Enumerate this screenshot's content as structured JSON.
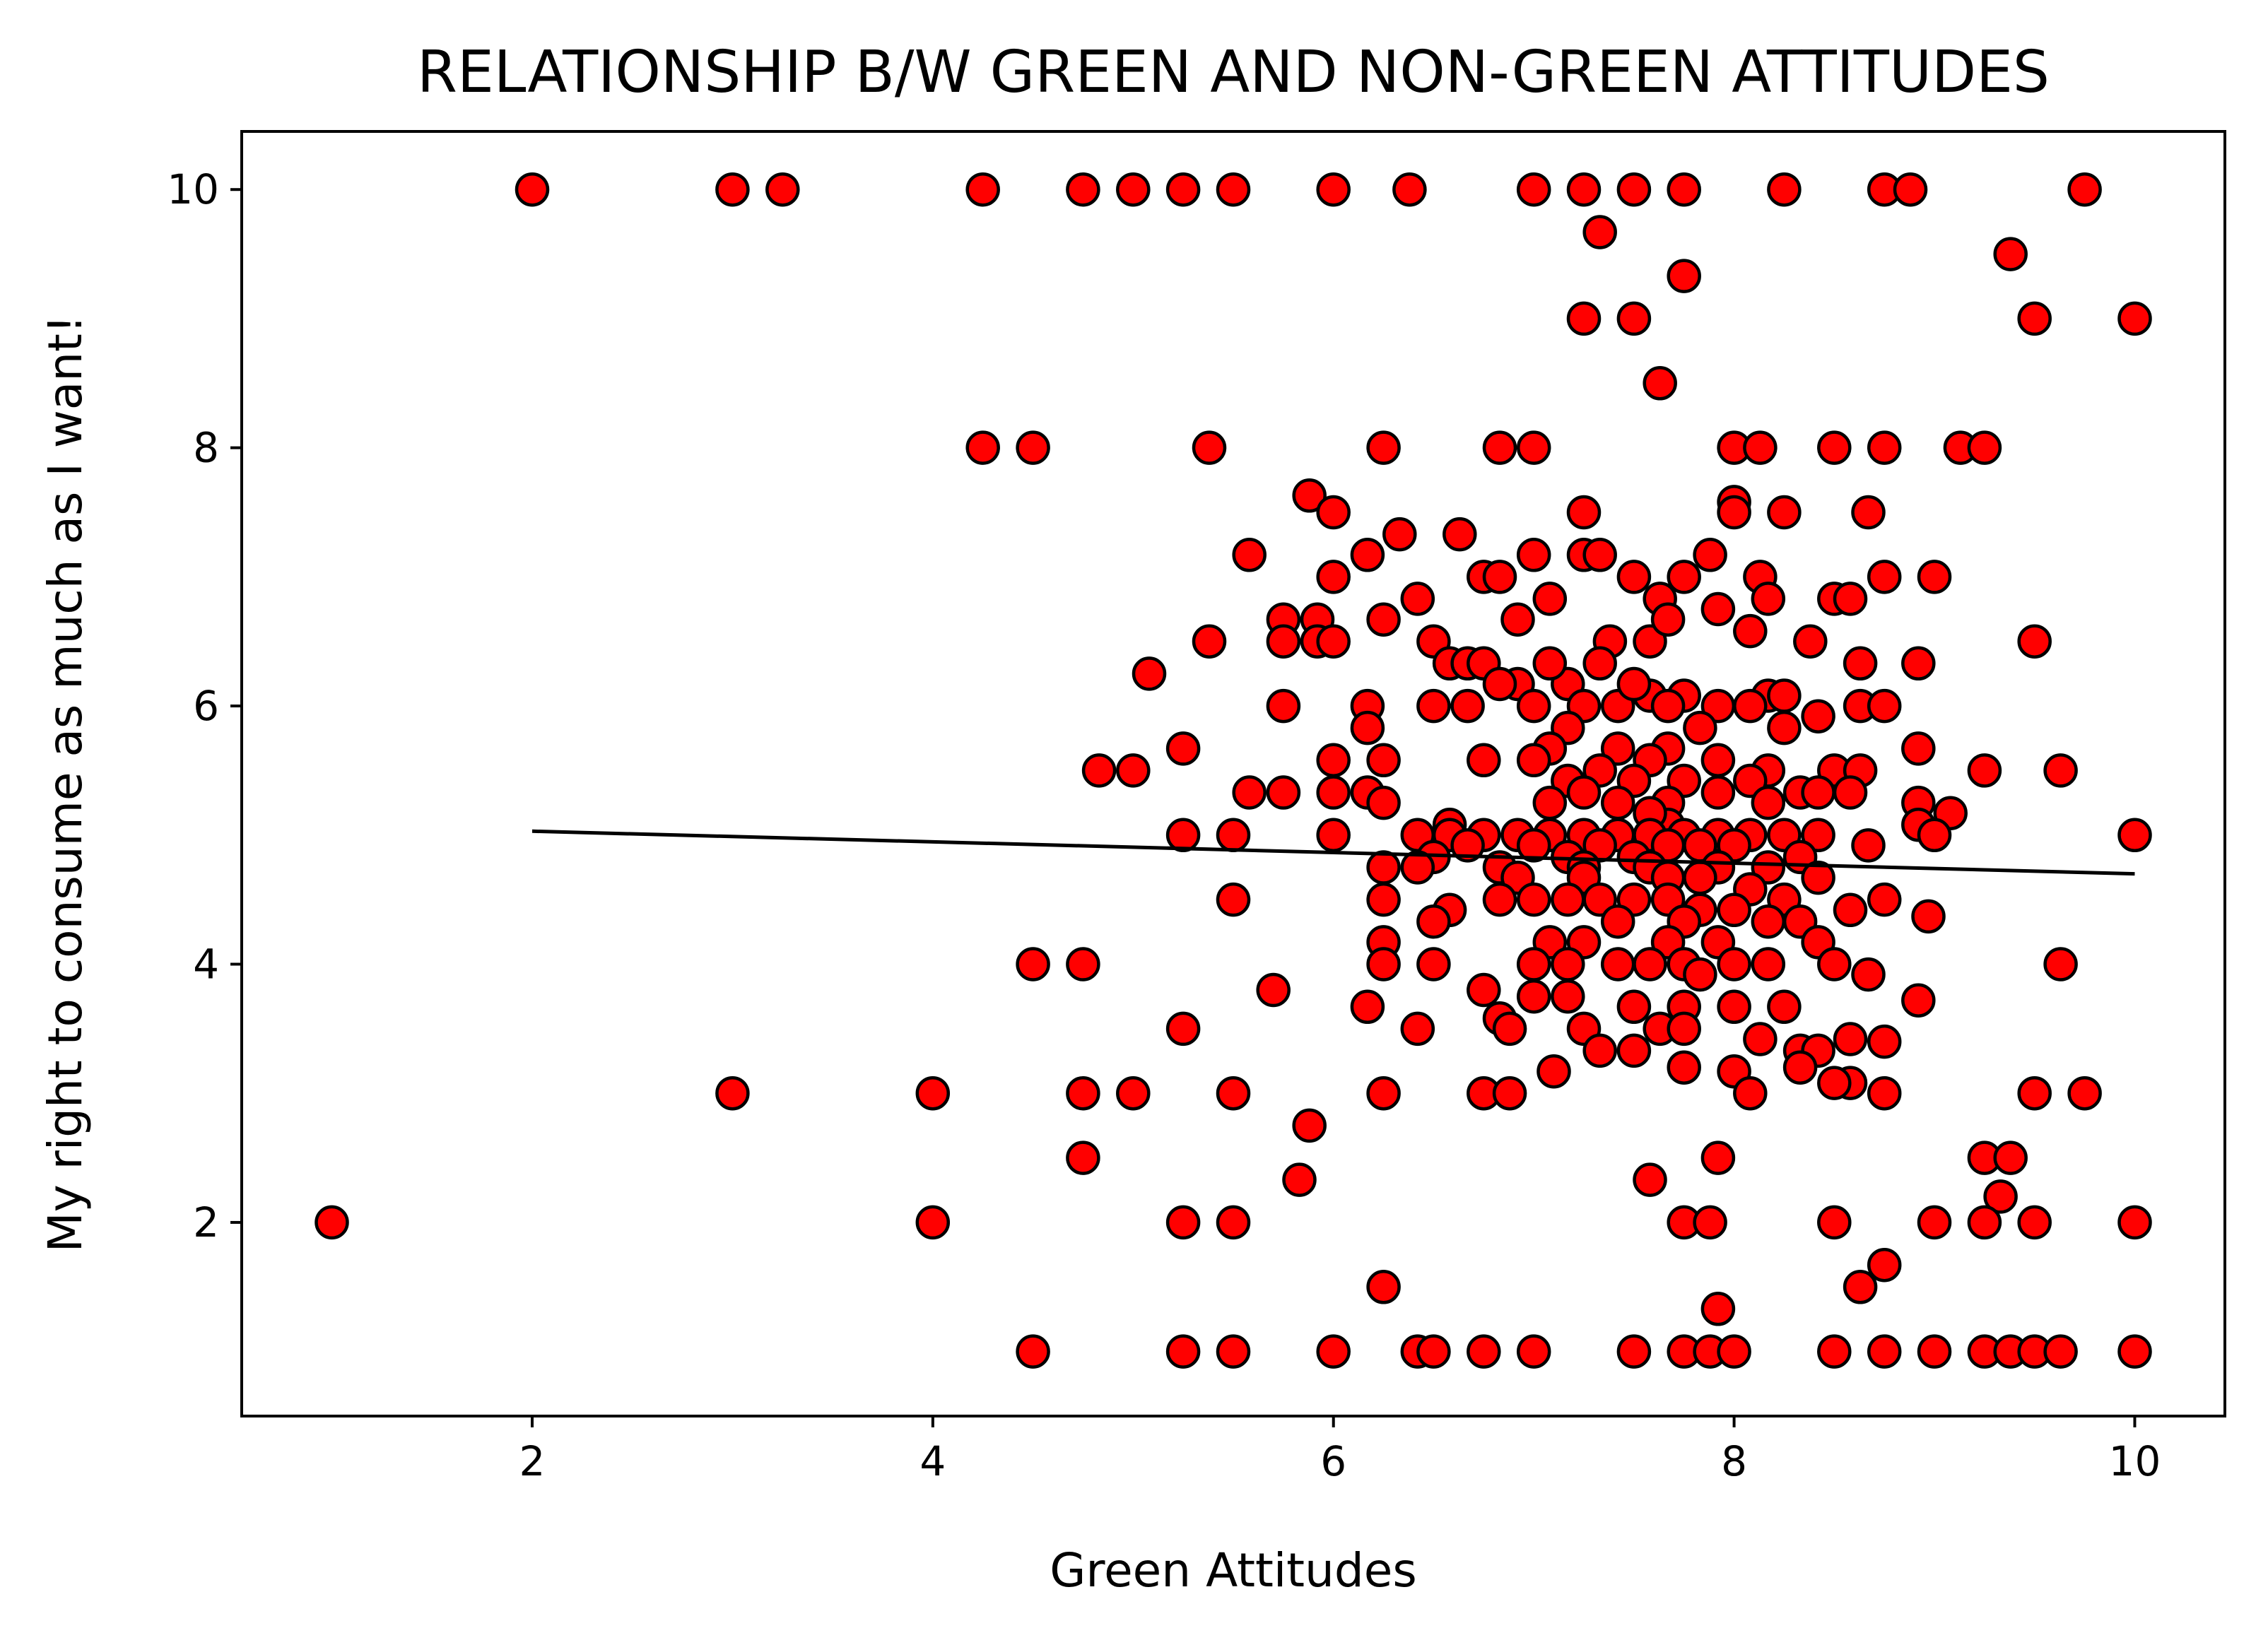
{
  "chart_data": {
    "type": "scatter",
    "title": "RELATIONSHIP B/W GREEN AND NON-GREEN ATTITUDES",
    "xlabel": "Green Attitudes",
    "ylabel": "My right to consume as much as I want!",
    "xlim": [
      0.55,
      10.45
    ],
    "ylim": [
      0.5,
      10.45
    ],
    "xticks": [
      2,
      4,
      6,
      8,
      10
    ],
    "yticks": [
      2,
      4,
      6,
      8,
      10
    ],
    "grid": false,
    "colors": {
      "marker_fill": "#ff0000",
      "marker_edge": "#000000",
      "trend_line": "#000000"
    },
    "trend_line": {
      "x": [
        2,
        10
      ],
      "y": [
        5.03,
        4.7
      ]
    },
    "points": [
      [
        2,
        10
      ],
      [
        3,
        10
      ],
      [
        3.25,
        10
      ],
      [
        4.25,
        10
      ],
      [
        4.75,
        10
      ],
      [
        5,
        10
      ],
      [
        5.25,
        10
      ],
      [
        5.5,
        10
      ],
      [
        6,
        10
      ],
      [
        6.38,
        10
      ],
      [
        7,
        10
      ],
      [
        7.25,
        10
      ],
      [
        7.5,
        10
      ],
      [
        7.75,
        10
      ],
      [
        8.25,
        10
      ],
      [
        8.75,
        10
      ],
      [
        8.88,
        10
      ],
      [
        9.75,
        10
      ],
      [
        7.33,
        9.67
      ],
      [
        9.38,
        9.5
      ],
      [
        7.75,
        9.33
      ],
      [
        7.25,
        9
      ],
      [
        7.5,
        9
      ],
      [
        9.5,
        9
      ],
      [
        10,
        9
      ],
      [
        7.63,
        8.5
      ],
      [
        4.25,
        8
      ],
      [
        4.5,
        8
      ],
      [
        5.38,
        8
      ],
      [
        6.25,
        8
      ],
      [
        6.83,
        8
      ],
      [
        7,
        8
      ],
      [
        8,
        8
      ],
      [
        8.13,
        8
      ],
      [
        8.5,
        8
      ],
      [
        8.75,
        8
      ],
      [
        9.13,
        8
      ],
      [
        9.25,
        8
      ],
      [
        5.88,
        7.63
      ],
      [
        6,
        7.5
      ],
      [
        7.25,
        7.5
      ],
      [
        8,
        7.58
      ],
      [
        8,
        7.5
      ],
      [
        8.25,
        7.5
      ],
      [
        8.67,
        7.5
      ],
      [
        6.63,
        7.33
      ],
      [
        6.33,
        7.33
      ],
      [
        6.17,
        7.17
      ],
      [
        5.58,
        7.17
      ],
      [
        7,
        7.17
      ],
      [
        7.25,
        7.17
      ],
      [
        7.33,
        7.17
      ],
      [
        7.88,
        7.17
      ],
      [
        6.75,
        7
      ],
      [
        6.83,
        7
      ],
      [
        6,
        7
      ],
      [
        7.5,
        7
      ],
      [
        7.75,
        7
      ],
      [
        8.13,
        7
      ],
      [
        8.75,
        7
      ],
      [
        9,
        7
      ],
      [
        7.63,
        6.83
      ],
      [
        6.42,
        6.83
      ],
      [
        6.92,
        6.67
      ],
      [
        7.08,
        6.83
      ],
      [
        8.17,
        6.83
      ],
      [
        8.5,
        6.83
      ],
      [
        8.58,
        6.83
      ],
      [
        5.75,
        6.67
      ],
      [
        5.92,
        6.67
      ],
      [
        6.25,
        6.67
      ],
      [
        5.38,
        6.5
      ],
      [
        5.75,
        6.5
      ],
      [
        5.92,
        6.5
      ],
      [
        6,
        6.5
      ],
      [
        6.5,
        6.5
      ],
      [
        7.38,
        6.5
      ],
      [
        7.58,
        6.5
      ],
      [
        8.38,
        6.5
      ],
      [
        9.5,
        6.5
      ],
      [
        7.67,
        6.67
      ],
      [
        7.92,
        6.75
      ],
      [
        8.08,
        6.58
      ],
      [
        6.58,
        6.33
      ],
      [
        6.67,
        6.33
      ],
      [
        6.75,
        6.33
      ],
      [
        8.63,
        6.33
      ],
      [
        8.92,
        6.33
      ],
      [
        5.08,
        6.25
      ],
      [
        7.17,
        6.17
      ],
      [
        6.92,
        6.17
      ],
      [
        7.58,
        6.08
      ],
      [
        7.75,
        6.08
      ],
      [
        8.17,
        6.08
      ],
      [
        5.75,
        6
      ],
      [
        6.17,
        6
      ],
      [
        6.5,
        6
      ],
      [
        6.67,
        6
      ],
      [
        7,
        6
      ],
      [
        7.25,
        6
      ],
      [
        7.42,
        6
      ],
      [
        7.67,
        6
      ],
      [
        7.92,
        6
      ],
      [
        8.08,
        6
      ],
      [
        8.63,
        6
      ],
      [
        8.75,
        6
      ],
      [
        6.83,
        6.17
      ],
      [
        7.08,
        6.33
      ],
      [
        7.33,
        6.33
      ],
      [
        7.5,
        6.17
      ],
      [
        8.25,
        6.08
      ],
      [
        6.17,
        5.83
      ],
      [
        8.42,
        5.92
      ],
      [
        7.17,
        5.83
      ],
      [
        7.83,
        5.83
      ],
      [
        8.25,
        5.83
      ],
      [
        7.08,
        5.67
      ],
      [
        7.42,
        5.67
      ],
      [
        7.67,
        5.67
      ],
      [
        5.25,
        5.67
      ],
      [
        8.92,
        5.67
      ],
      [
        4.83,
        5.5
      ],
      [
        5,
        5.5
      ],
      [
        6,
        5.58
      ],
      [
        6.25,
        5.58
      ],
      [
        6.75,
        5.58
      ],
      [
        7,
        5.58
      ],
      [
        7.33,
        5.5
      ],
      [
        7.58,
        5.58
      ],
      [
        7.92,
        5.58
      ],
      [
        8.17,
        5.5
      ],
      [
        8.5,
        5.5
      ],
      [
        8.63,
        5.5
      ],
      [
        9.25,
        5.5
      ],
      [
        9.63,
        5.5
      ],
      [
        7.17,
        5.42
      ],
      [
        7.5,
        5.42
      ],
      [
        7.75,
        5.42
      ],
      [
        8.08,
        5.42
      ],
      [
        8.33,
        5.33
      ],
      [
        5.58,
        5.33
      ],
      [
        5.75,
        5.33
      ],
      [
        6,
        5.33
      ],
      [
        6.17,
        5.33
      ],
      [
        6.25,
        5.25
      ],
      [
        7.08,
        5.25
      ],
      [
        7.42,
        5.25
      ],
      [
        7.67,
        5.25
      ],
      [
        8.17,
        5.25
      ],
      [
        8.42,
        5.33
      ],
      [
        8.58,
        5.33
      ],
      [
        8.92,
        5.25
      ],
      [
        9.08,
        5.17
      ],
      [
        8.92,
        5.08
      ],
      [
        9,
        5
      ],
      [
        7.67,
        5.08
      ],
      [
        6.58,
        5.08
      ],
      [
        7.58,
        5.17
      ],
      [
        7.25,
        5.33
      ],
      [
        7.92,
        5.33
      ],
      [
        5.25,
        5
      ],
      [
        5.5,
        5
      ],
      [
        6,
        5
      ],
      [
        6.42,
        5
      ],
      [
        6.58,
        5
      ],
      [
        6.75,
        5
      ],
      [
        6.92,
        5
      ],
      [
        7.08,
        5
      ],
      [
        7.25,
        5
      ],
      [
        7.42,
        5
      ],
      [
        7.58,
        5
      ],
      [
        7.75,
        5
      ],
      [
        7.92,
        5
      ],
      [
        8.08,
        5
      ],
      [
        8.25,
        5
      ],
      [
        8.42,
        5
      ],
      [
        10,
        5
      ],
      [
        6.67,
        4.92
      ],
      [
        7,
        4.92
      ],
      [
        7.33,
        4.92
      ],
      [
        7.67,
        4.92
      ],
      [
        7.83,
        4.92
      ],
      [
        8,
        4.92
      ],
      [
        8.67,
        4.92
      ],
      [
        6.5,
        4.83
      ],
      [
        7.17,
        4.83
      ],
      [
        7.5,
        4.83
      ],
      [
        8.33,
        4.83
      ],
      [
        6.42,
        4.75
      ],
      [
        6.83,
        4.75
      ],
      [
        7.25,
        4.75
      ],
      [
        7.58,
        4.75
      ],
      [
        7.92,
        4.75
      ],
      [
        8.17,
        4.75
      ],
      [
        6.25,
        4.75
      ],
      [
        6.92,
        4.67
      ],
      [
        7.25,
        4.67
      ],
      [
        7.67,
        4.67
      ],
      [
        7.83,
        4.67
      ],
      [
        8.08,
        4.58
      ],
      [
        8.42,
        4.67
      ],
      [
        5.5,
        4.5
      ],
      [
        6.25,
        4.5
      ],
      [
        6.58,
        4.42
      ],
      [
        6.83,
        4.5
      ],
      [
        7,
        4.5
      ],
      [
        7.17,
        4.5
      ],
      [
        7.33,
        4.5
      ],
      [
        7.5,
        4.5
      ],
      [
        7.67,
        4.5
      ],
      [
        7.83,
        4.42
      ],
      [
        8,
        4.42
      ],
      [
        8.25,
        4.5
      ],
      [
        8.75,
        4.5
      ],
      [
        6.5,
        4.33
      ],
      [
        7.42,
        4.33
      ],
      [
        7.75,
        4.33
      ],
      [
        8.17,
        4.33
      ],
      [
        8.33,
        4.33
      ],
      [
        8.58,
        4.42
      ],
      [
        8.97,
        4.37
      ],
      [
        6.25,
        4.17
      ],
      [
        7.08,
        4.17
      ],
      [
        7.25,
        4.17
      ],
      [
        7.67,
        4.17
      ],
      [
        7.92,
        4.17
      ],
      [
        8.42,
        4.17
      ],
      [
        4.5,
        4
      ],
      [
        4.75,
        4
      ],
      [
        6.25,
        4
      ],
      [
        6.5,
        4
      ],
      [
        7,
        4
      ],
      [
        7.17,
        4
      ],
      [
        7.42,
        4
      ],
      [
        7.58,
        4
      ],
      [
        7.75,
        4
      ],
      [
        8,
        4
      ],
      [
        8.17,
        4
      ],
      [
        8.5,
        4
      ],
      [
        9.63,
        4
      ],
      [
        7.83,
        3.92
      ],
      [
        8.67,
        3.92
      ],
      [
        5.7,
        3.8
      ],
      [
        6.75,
        3.8
      ],
      [
        6.17,
        3.67
      ],
      [
        7,
        3.75
      ],
      [
        7.17,
        3.75
      ],
      [
        7.5,
        3.67
      ],
      [
        7.75,
        3.67
      ],
      [
        8.25,
        3.67
      ],
      [
        8,
        3.67
      ],
      [
        8.92,
        3.72
      ],
      [
        5.25,
        3.5
      ],
      [
        6.42,
        3.5
      ],
      [
        6.83,
        3.58
      ],
      [
        6.88,
        3.5
      ],
      [
        7.25,
        3.5
      ],
      [
        7.63,
        3.5
      ],
      [
        7.75,
        3.5
      ],
      [
        8.13,
        3.42
      ],
      [
        8.58,
        3.42
      ],
      [
        8.75,
        3.4
      ],
      [
        7.33,
        3.33
      ],
      [
        7.5,
        3.33
      ],
      [
        8.33,
        3.33
      ],
      [
        8.42,
        3.33
      ],
      [
        7.1,
        3.17
      ],
      [
        7.75,
        3.2
      ],
      [
        8,
        3.17
      ],
      [
        8.33,
        3.2
      ],
      [
        8.58,
        3.08
      ],
      [
        8.5,
        3.08
      ],
      [
        3,
        3
      ],
      [
        4,
        3
      ],
      [
        4.75,
        3
      ],
      [
        5,
        3
      ],
      [
        5.5,
        3
      ],
      [
        6.25,
        3
      ],
      [
        6.75,
        3
      ],
      [
        6.88,
        3
      ],
      [
        8.08,
        3
      ],
      [
        8.75,
        3
      ],
      [
        9.5,
        3
      ],
      [
        9.75,
        3
      ],
      [
        5.88,
        2.75
      ],
      [
        4.75,
        2.5
      ],
      [
        7.92,
        2.5
      ],
      [
        9.25,
        2.5
      ],
      [
        9.38,
        2.5
      ],
      [
        5.83,
        2.33
      ],
      [
        7.58,
        2.33
      ],
      [
        9.33,
        2.2
      ],
      [
        1,
        2
      ],
      [
        4,
        2
      ],
      [
        5.25,
        2
      ],
      [
        5.5,
        2
      ],
      [
        7.75,
        2
      ],
      [
        7.88,
        2
      ],
      [
        8.5,
        2
      ],
      [
        9,
        2
      ],
      [
        9.25,
        2
      ],
      [
        9.5,
        2
      ],
      [
        10,
        2
      ],
      [
        8.75,
        1.67
      ],
      [
        6.25,
        1.5
      ],
      [
        8.63,
        1.5
      ],
      [
        7.92,
        1.33
      ],
      [
        4.5,
        1
      ],
      [
        5.25,
        1
      ],
      [
        5.5,
        1
      ],
      [
        6,
        1
      ],
      [
        6.42,
        1
      ],
      [
        6.5,
        1
      ],
      [
        6.75,
        1
      ],
      [
        7,
        1
      ],
      [
        7.5,
        1
      ],
      [
        7.75,
        1
      ],
      [
        7.88,
        1
      ],
      [
        8,
        1
      ],
      [
        8.5,
        1
      ],
      [
        8.75,
        1
      ],
      [
        9,
        1
      ],
      [
        9.25,
        1
      ],
      [
        9.38,
        1
      ],
      [
        9.5,
        1
      ],
      [
        9.63,
        1
      ],
      [
        10,
        1
      ]
    ]
  }
}
